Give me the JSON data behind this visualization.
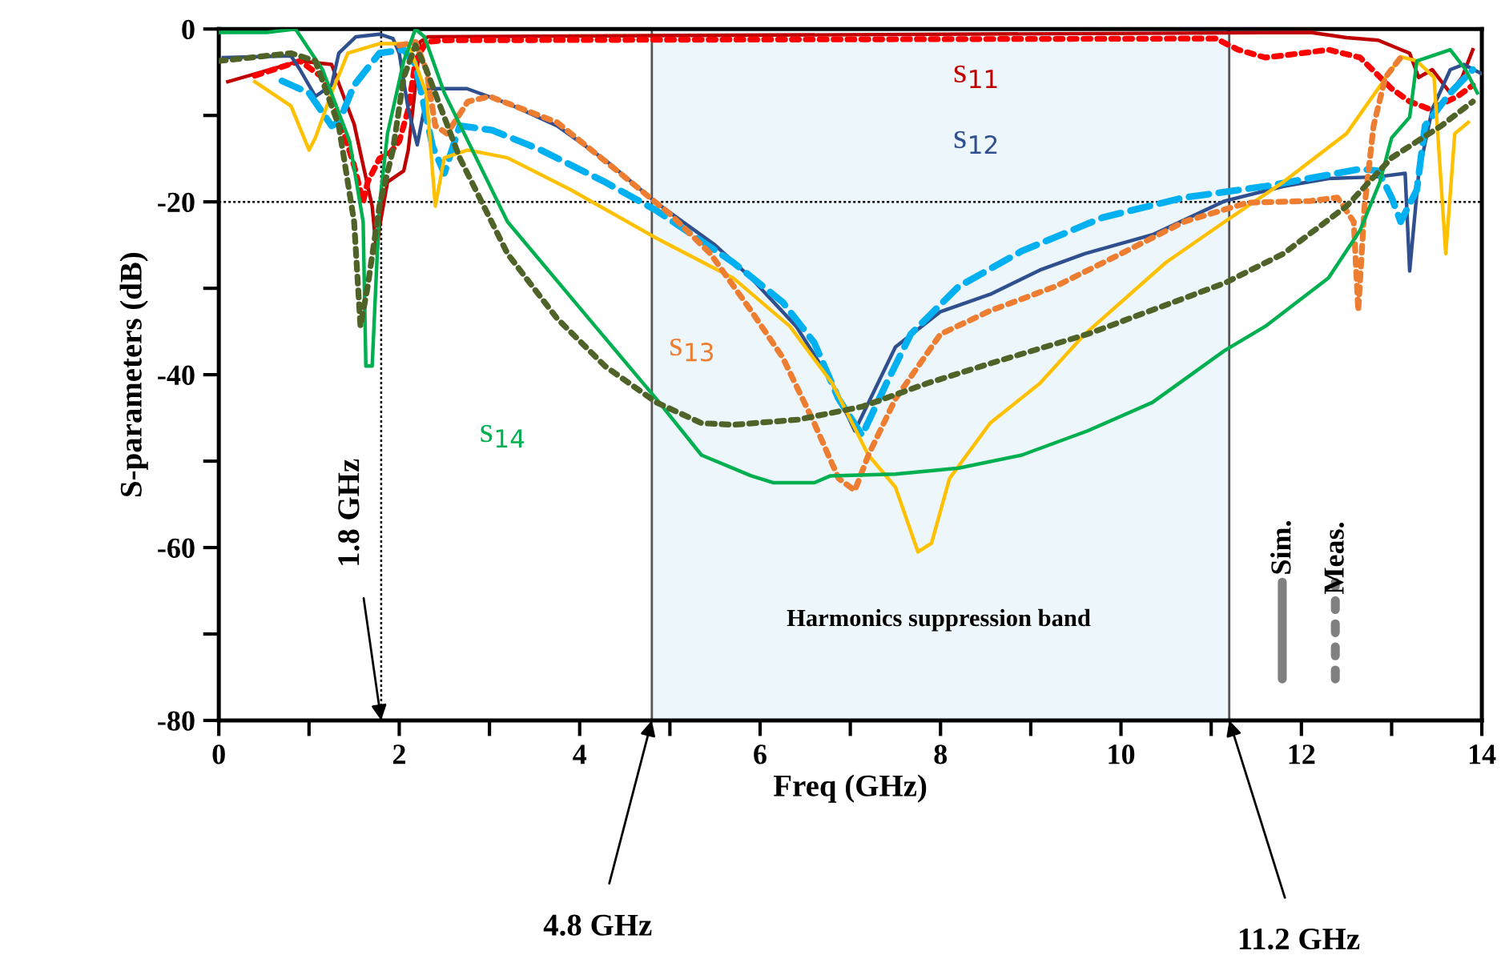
{
  "chart_data": {
    "type": "line",
    "xlabel": "Freq (GHz)",
    "ylabel": "S-parameters (dB)",
    "xlim": [
      0,
      14
    ],
    "ylim": [
      -80,
      0
    ],
    "xticks": [
      0,
      {
        "value": 1,
        "label": null
      },
      2,
      {
        "value": 3,
        "label": null
      },
      4,
      {
        "value": 5,
        "label": null
      },
      6,
      {
        "value": 7,
        "label": null
      },
      8,
      {
        "value": 9,
        "label": null
      },
      10,
      {
        "value": 11,
        "label": null
      },
      12,
      {
        "value": 13,
        "label": null
      },
      14
    ],
    "yticks": [
      {
        "value": -80,
        "label": "-80"
      },
      {
        "value": -70,
        "label": null
      },
      {
        "value": -60,
        "label": "-60"
      },
      {
        "value": -50,
        "label": null
      },
      {
        "value": -40,
        "label": "-40"
      },
      {
        "value": -30,
        "label": null
      },
      {
        "value": -20,
        "label": "-20"
      },
      {
        "value": -10,
        "label": null
      },
      0
    ],
    "grid": false,
    "legend": false,
    "series": [
      {
        "color": "#c00000",
        "line_style": "solid",
        "x": [
          0.1,
          0.9,
          1.25,
          1.5,
          1.7,
          1.75,
          1.78,
          1.87,
          2.05,
          2.1,
          2.18,
          2.23,
          2.32,
          12.1,
          12.5,
          12.85,
          13.2,
          13.3,
          13.45,
          13.65,
          13.78,
          13.9
        ],
        "values": [
          -6.1,
          -3.7,
          -4.1,
          -11,
          -20.5,
          -26,
          -23,
          -17.7,
          -16.4,
          -14,
          -6.5,
          -1.5,
          -0.9,
          -0.4,
          -1,
          -1.3,
          -2.8,
          -5.6,
          -4.7,
          -7.4,
          -5.6,
          -2.4
        ]
      },
      {
        "color": "#ff0000",
        "line_style": "dotted",
        "x": [
          0.4,
          0.9,
          1.15,
          1.33,
          1.5,
          1.6,
          1.65,
          1.78,
          1.9,
          2.0,
          2.1,
          2.18,
          2.3,
          2.5,
          11.05,
          11.3,
          11.6,
          11.85,
          12.3,
          12.65,
          13.0,
          13.2,
          13.43,
          13.73,
          13.9
        ],
        "values": [
          -5.4,
          -3.7,
          -5.6,
          -10.2,
          -15.8,
          -20,
          -17.7,
          -15,
          -14.3,
          -13,
          -9.3,
          -3.7,
          -1.5,
          -1.3,
          -1.1,
          -2.4,
          -3.3,
          -3,
          -2.4,
          -3.3,
          -6.9,
          -8.4,
          -9.3,
          -7.8,
          -6.5
        ]
      },
      {
        "color": "#2f4f8f",
        "line_style": "solid",
        "x": [
          0.05,
          0.8,
          0.9,
          1.07,
          1.25,
          1.33,
          1.52,
          1.78,
          1.93,
          2.0,
          2.1,
          2.2,
          2.32,
          2.45,
          2.75,
          3.2,
          3.75,
          4.3,
          4.85,
          5.5,
          5.9,
          6.4,
          6.8,
          7.05,
          7.5,
          8.0,
          8.55,
          9.1,
          9.6,
          10.35,
          11.15,
          11.8,
          12.3,
          12.85,
          13.15,
          13.2,
          13.3,
          13.45,
          13.65,
          13.8,
          14.0
        ],
        "values": [
          -3.3,
          -3.1,
          -4.7,
          -7.8,
          -6.5,
          -2.8,
          -0.9,
          -0.6,
          -1.1,
          -2.8,
          -9.3,
          -13.4,
          -6.9,
          -6.9,
          -6.9,
          -8.6,
          -11.2,
          -15.3,
          -20.1,
          -25,
          -28.8,
          -34.4,
          -41,
          -46.5,
          -36.8,
          -32.7,
          -30.7,
          -27.9,
          -26,
          -23.8,
          -19.9,
          -18.2,
          -17.3,
          -17.1,
          -16.7,
          -28,
          -16.7,
          -9.3,
          -4.7,
          -4.1,
          -5.2
        ]
      },
      {
        "color": "#00b0f0",
        "line_style": "dashed",
        "x": [
          0.7,
          1.0,
          1.25,
          1.33,
          1.5,
          1.78,
          2.05,
          2.18,
          2.37,
          2.5,
          2.67,
          3.03,
          3.57,
          4.28,
          4.85,
          5.7,
          6.25,
          6.6,
          6.87,
          7.13,
          7.4,
          7.67,
          8.2,
          8.9,
          9.8,
          10.7,
          11.6,
          12.65,
          12.85,
          13.0,
          13.1,
          13.28,
          13.37,
          13.65,
          13.9
        ],
        "values": [
          -6,
          -7.4,
          -11.2,
          -10.8,
          -6.5,
          -2.8,
          -2.4,
          -4.1,
          -13.6,
          -16.7,
          -11.2,
          -11.7,
          -14,
          -17.7,
          -21,
          -27,
          -31.6,
          -36.3,
          -42.8,
          -47,
          -41,
          -35.3,
          -29.8,
          -25.7,
          -21.8,
          -19.5,
          -18.2,
          -16.2,
          -16.4,
          -19.5,
          -22.3,
          -18.6,
          -11.2,
          -7.4,
          -4.7
        ]
      },
      {
        "color": "#ffc000",
        "line_style": "solid",
        "x": [
          0.4,
          0.8,
          1.0,
          1.07,
          1.25,
          1.43,
          1.78,
          2.1,
          2.3,
          2.4,
          2.5,
          2.76,
          3.2,
          3.9,
          4.85,
          5.7,
          6.33,
          6.8,
          7.2,
          7.5,
          7.75,
          7.9,
          8.1,
          8.55,
          9.1,
          9.6,
          10.5,
          11.15,
          11.8,
          12.5,
          13.1,
          13.28,
          13.47,
          13.6,
          13.7,
          13.85
        ],
        "values": [
          -6.1,
          -8.9,
          -14,
          -12.6,
          -7.4,
          -2.8,
          -1.7,
          -1.7,
          -7.4,
          -20.5,
          -14.9,
          -14,
          -14.9,
          -18.6,
          -24.2,
          -28.8,
          -34.4,
          -41,
          -49.3,
          -53,
          -60.5,
          -59.5,
          -52,
          -45.6,
          -41,
          -35.3,
          -27,
          -22.3,
          -17.7,
          -12.1,
          -3.2,
          -3.7,
          -5.6,
          -26,
          -12.1,
          -10.8
        ]
      },
      {
        "color": "#ed7d31",
        "line_style": "dotted",
        "x": [
          2.0,
          2.18,
          2.3,
          2.4,
          2.53,
          2.76,
          3.0,
          3.75,
          4.45,
          5.0,
          5.45,
          5.9,
          6.25,
          6.6,
          6.87,
          7.05,
          7.2,
          7.5,
          8.0,
          8.55,
          9.27,
          10.0,
          10.7,
          11.4,
          12.1,
          12.4,
          12.58,
          12.63,
          12.7,
          12.8,
          12.93,
          13.1
        ],
        "values": [
          -1.9,
          -1.5,
          -4.7,
          -11.2,
          -12.1,
          -8.4,
          -7.8,
          -10.8,
          -16.7,
          -21.4,
          -26,
          -32.6,
          -38,
          -45.6,
          -52,
          -53.4,
          -49.3,
          -42.8,
          -35.3,
          -32.6,
          -29.8,
          -26,
          -22.3,
          -20.1,
          -19.9,
          -19.5,
          -22.3,
          -32.6,
          -20.5,
          -11.2,
          -5.6,
          -3.3
        ]
      },
      {
        "color": "#00b050",
        "line_style": "solid",
        "x": [
          0.0,
          0.53,
          0.85,
          1.15,
          1.45,
          1.6,
          1.63,
          1.7,
          1.78,
          1.87,
          2.05,
          2.18,
          2.28,
          2.5,
          3.2,
          4.1,
          4.85,
          5.35,
          5.9,
          6.15,
          6.6,
          6.78,
          7.5,
          8.2,
          8.9,
          9.63,
          10.35,
          11.15,
          11.6,
          12.3,
          12.65,
          12.87,
          13.0,
          13.2,
          13.28,
          13.65,
          13.82,
          13.95
        ],
        "values": [
          -0.4,
          -0.4,
          0,
          -4.7,
          -13,
          -22.3,
          -39,
          -39,
          -20.5,
          -12.1,
          -3.7,
          0,
          -0.9,
          -7.4,
          -22.3,
          -33.5,
          -42.8,
          -49.3,
          -51.7,
          -52.5,
          -52.5,
          -51.7,
          -51.5,
          -50.8,
          -49.3,
          -46.5,
          -43.2,
          -37.2,
          -34.4,
          -28.8,
          -23.3,
          -17.7,
          -12.6,
          -10.2,
          -3.7,
          -2.4,
          -4.7,
          -7.4
        ]
      },
      {
        "color": "#4f6228",
        "line_style": "dotted",
        "x": [
          0.0,
          0.8,
          1.07,
          1.33,
          1.5,
          1.57,
          1.65,
          1.78,
          1.93,
          2.05,
          2.18,
          2.3,
          2.67,
          3.2,
          3.75,
          4.28,
          4.85,
          5.35,
          5.7,
          6.42,
          7.13,
          7.85,
          8.55,
          9.63,
          11.15,
          11.8,
          12.5,
          13.0,
          13.55,
          13.9
        ],
        "values": [
          -3.7,
          -2.8,
          -3.7,
          -11.2,
          -22.3,
          -34.4,
          -29.8,
          -20.5,
          -14,
          -5.6,
          -1.9,
          -4.7,
          -14.9,
          -26,
          -33.5,
          -39,
          -43.2,
          -45.6,
          -45.8,
          -45.2,
          -43.7,
          -41,
          -38.7,
          -35.3,
          -29.4,
          -26,
          -20.5,
          -14.9,
          -11.2,
          -8.4
        ]
      }
    ],
    "ref_lines": [
      {
        "axis": "y",
        "value": -20,
        "color": "#000000",
        "line_style": "dotted"
      },
      {
        "axis": "x",
        "value": 1.8,
        "color": "#000000",
        "line_style": "dotted"
      }
    ],
    "bands": [
      {
        "axis": "x",
        "from": 4.8,
        "to": 11.2,
        "color": "#edf6fa"
      }
    ],
    "annotations": [
      {
        "text": "1.8 GHz",
        "x": 1.8,
        "y": -80
      },
      {
        "text": "4.8 GHz",
        "x": 4.8,
        "y": -80
      },
      {
        "text": "11.2 GHz",
        "x": 11.2,
        "y": -80
      },
      "Harmonics suppression band",
      "s$_{11}$",
      "s$_{12}$",
      "s$_{13}$",
      "s$_{14}$",
      "Sim.",
      "Meas."
    ]
  }
}
